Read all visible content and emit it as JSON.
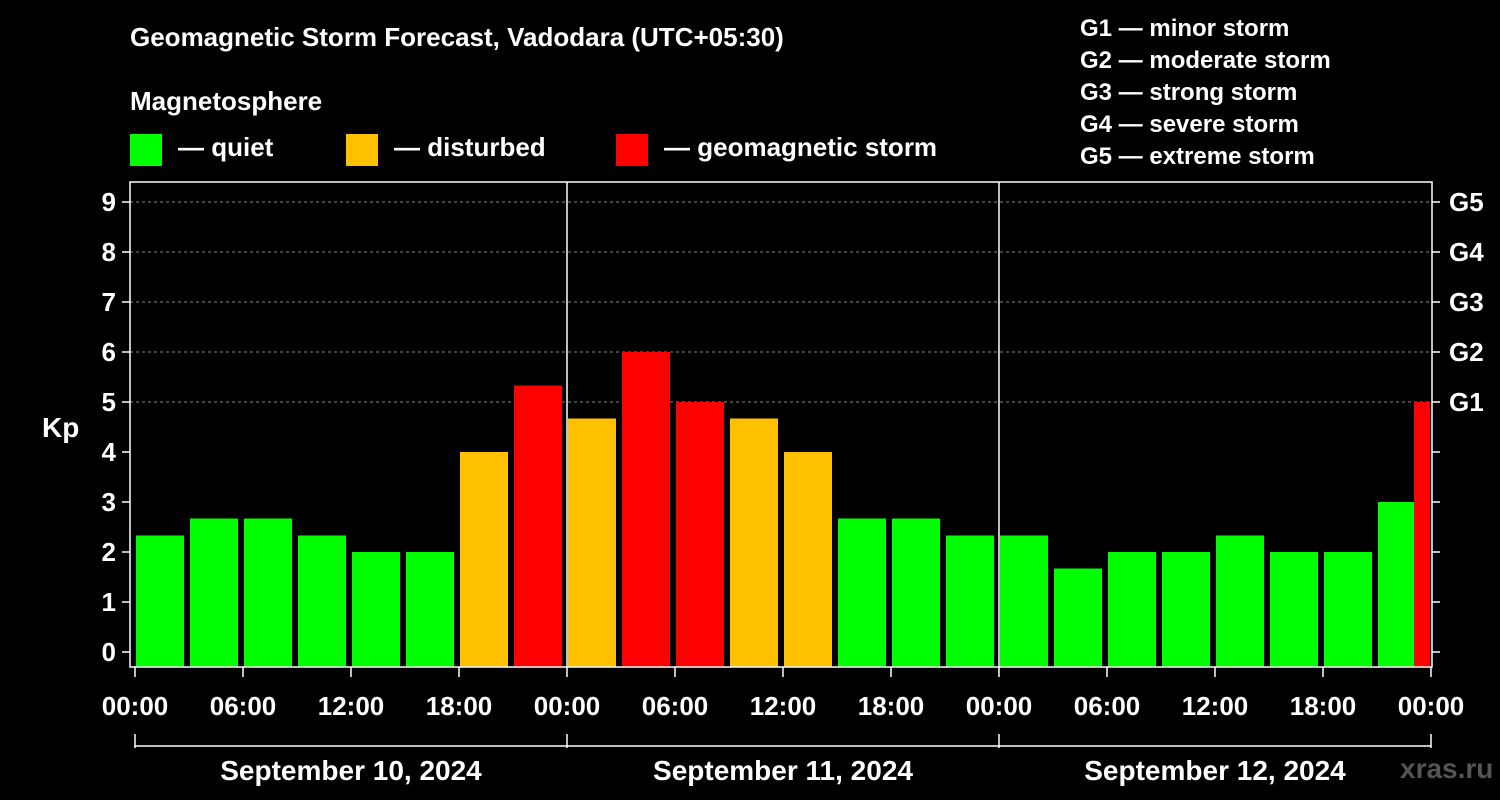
{
  "chart_data": {
    "type": "bar",
    "title": "Geomagnetic Storm Forecast, Vadodara (UTC+05:30)",
    "ylabel": "Kp",
    "ylim": [
      0,
      9
    ],
    "yticks": [
      "0",
      "1",
      "2",
      "3",
      "4",
      "5",
      "6",
      "7",
      "8",
      "9"
    ],
    "right_ticks": [
      {
        "kp": 5,
        "label": "G1"
      },
      {
        "kp": 6,
        "label": "G2"
      },
      {
        "kp": 7,
        "label": "G3"
      },
      {
        "kp": 8,
        "label": "G4"
      },
      {
        "kp": 9,
        "label": "G5"
      }
    ],
    "time_ticks": [
      "00:00",
      "06:00",
      "12:00",
      "18:00",
      "00:00",
      "06:00",
      "12:00",
      "18:00",
      "00:00",
      "06:00",
      "12:00",
      "18:00",
      "00:00"
    ],
    "days": [
      "September 10, 2024",
      "September 11, 2024",
      "September 12, 2024"
    ],
    "bar_interval_hours": 3,
    "start_offset_hours": 0,
    "values": [
      2.33,
      2.67,
      2.67,
      2.33,
      2.0,
      2.0,
      4.0,
      5.33,
      4.67,
      6.0,
      5.0,
      4.67,
      4.0,
      2.67,
      2.67,
      2.33,
      2.33,
      1.67,
      2.0,
      2.0,
      2.33,
      2.0,
      2.0,
      3.0,
      5.0
    ],
    "colors": {
      "quiet": "#00ff00",
      "disturbed": "#ffc000",
      "storm": "#ff0000"
    },
    "legend": {
      "title": "Magnetosphere",
      "items": [
        {
          "label": "— quiet",
          "color": "#00ff00"
        },
        {
          "label": "— disturbed",
          "color": "#ffc000"
        },
        {
          "label": "— geomagnetic storm",
          "color": "#ff0000"
        }
      ]
    },
    "storm_scale": [
      "G1 — minor storm",
      "G2 — moderate storm",
      "G3 — strong storm",
      "G4 — severe storm",
      "G5 — extreme storm"
    ]
  },
  "watermark": "xras.ru"
}
